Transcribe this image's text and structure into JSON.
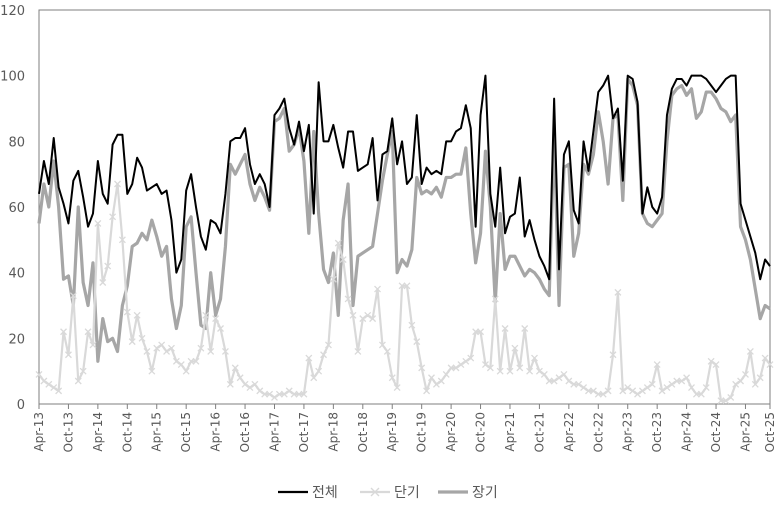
{
  "chart_data": {
    "type": "line",
    "title": "",
    "xlabel": "",
    "ylabel": "",
    "ylim": [
      0,
      120
    ],
    "yticks": [
      0,
      20,
      40,
      60,
      80,
      100,
      120
    ],
    "grid": false,
    "legend_position": "bottom",
    "x_tick_labels": [
      "Apr-13",
      "Oct-13",
      "Apr-14",
      "Oct-14",
      "Apr-15",
      "Oct-15",
      "Apr-16",
      "Oct-16",
      "Apr-17",
      "Oct-17",
      "Apr-18",
      "Oct-18",
      "Apr-19",
      "Oct-19",
      "Apr-20",
      "Oct-20",
      "Apr-21",
      "Oct-21",
      "Apr-22",
      "Oct-22",
      "Apr-23",
      "Oct-23",
      "Apr-24",
      "Oct-24",
      "Apr-25",
      "Oct-25"
    ],
    "series": [
      {
        "name": "전체",
        "color": "#000000",
        "marker": "none",
        "values": [
          64,
          74,
          67,
          81,
          66,
          61,
          55,
          68,
          71,
          63,
          54,
          58,
          74,
          64,
          61,
          79,
          82,
          82,
          64,
          67,
          75,
          72,
          65,
          66,
          67,
          64,
          65,
          56,
          40,
          44,
          65,
          70,
          60,
          51,
          47,
          56,
          55,
          52,
          64,
          80,
          81,
          81,
          84,
          73,
          67,
          70,
          67,
          60,
          88,
          90,
          93,
          84,
          79,
          86,
          77,
          85,
          58,
          98,
          80,
          80,
          85,
          78,
          72,
          83,
          83,
          71,
          72,
          73,
          81,
          62,
          76,
          77,
          87,
          73,
          80,
          67,
          69,
          88,
          67,
          72,
          70,
          71,
          70,
          80,
          80,
          83,
          84,
          91,
          84,
          54,
          88,
          100,
          64,
          54,
          72,
          52,
          57,
          58,
          69,
          51,
          56,
          50,
          45,
          42,
          38,
          93,
          41,
          76,
          80,
          59,
          55,
          80,
          71,
          83,
          95,
          97,
          100,
          87,
          90,
          68,
          100,
          99,
          92,
          58,
          66,
          60,
          58,
          63,
          88,
          96,
          99,
          99,
          97,
          100,
          100,
          100,
          99,
          97,
          95,
          97,
          99,
          100,
          100,
          61,
          56,
          51,
          46,
          38,
          44,
          42
        ]
      },
      {
        "name": "단기",
        "color": "#d9d9d9",
        "marker": "x",
        "values": [
          9,
          7,
          6,
          5,
          4,
          22,
          15,
          33,
          7,
          10,
          22,
          18,
          55,
          37,
          42,
          57,
          67,
          50,
          28,
          19,
          27,
          20,
          16,
          10,
          17,
          18,
          16,
          17,
          13,
          12,
          10,
          13,
          13,
          17,
          27,
          16,
          26,
          23,
          16,
          6,
          11,
          8,
          6,
          5,
          6,
          4,
          3,
          3,
          2,
          3,
          3,
          4,
          3,
          3,
          3,
          14,
          8,
          10,
          15,
          18,
          38,
          49,
          44,
          32,
          27,
          16,
          26,
          27,
          26,
          35,
          18,
          16,
          8,
          5,
          36,
          36,
          24,
          19,
          11,
          4,
          8,
          6,
          7,
          9,
          11,
          11,
          12,
          13,
          14,
          22,
          22,
          12,
          11,
          32,
          10,
          23,
          10,
          17,
          11,
          23,
          10,
          14,
          10,
          9,
          7,
          7,
          8,
          9,
          7,
          6,
          6,
          5,
          4,
          4,
          3,
          3,
          4,
          15,
          34,
          4,
          5,
          4,
          3,
          4,
          5,
          6,
          12,
          4,
          5,
          6,
          7,
          7,
          8,
          5,
          3,
          3,
          5,
          13,
          12,
          1,
          1,
          2,
          6,
          7,
          9,
          16,
          6,
          8,
          14,
          12
        ]
      },
      {
        "name": "장기",
        "color": "#a6a6a6",
        "marker": "none",
        "values": [
          55,
          67,
          60,
          74,
          60,
          38,
          39,
          30,
          60,
          37,
          30,
          43,
          13,
          26,
          19,
          20,
          16,
          30,
          36,
          48,
          49,
          52,
          50,
          56,
          51,
          45,
          48,
          32,
          23,
          30,
          54,
          57,
          40,
          24,
          23,
          40,
          27,
          32,
          48,
          73,
          70,
          73,
          76,
          67,
          62,
          66,
          63,
          59,
          86,
          87,
          90,
          77,
          79,
          84,
          74,
          52,
          83,
          58,
          41,
          37,
          46,
          27,
          56,
          67,
          30,
          45,
          46,
          47,
          48,
          58,
          68,
          76,
          83,
          40,
          44,
          42,
          47,
          69,
          64,
          65,
          64,
          66,
          63,
          69,
          69,
          70,
          70,
          78,
          58,
          43,
          52,
          77,
          60,
          31,
          58,
          41,
          45,
          45,
          42,
          39,
          41,
          40,
          38,
          35,
          33,
          83,
          30,
          72,
          73,
          45,
          52,
          73,
          70,
          76,
          89,
          80,
          67,
          87,
          88,
          62,
          99,
          97,
          91,
          58,
          55,
          54,
          56,
          58,
          80,
          94,
          96,
          97,
          94,
          96,
          87,
          89,
          95,
          95,
          93,
          90,
          89,
          86,
          88,
          54,
          50,
          44,
          35,
          26,
          30,
          29
        ]
      }
    ]
  }
}
